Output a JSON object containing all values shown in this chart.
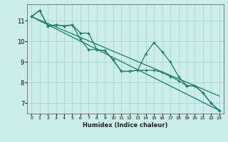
{
  "xlabel": "Humidex (Indice chaleur)",
  "ylabel": "",
  "bg_color": "#cceee8",
  "grid_color": "#aad4cc",
  "line_color": "#1a7a6a",
  "x_data": [
    0,
    1,
    2,
    3,
    4,
    5,
    6,
    7,
    8,
    9,
    10,
    11,
    12,
    13,
    14,
    15,
    16,
    17,
    18,
    19,
    20,
    21,
    22,
    23
  ],
  "line1": [
    11.2,
    11.5,
    10.75,
    10.8,
    10.75,
    10.8,
    10.4,
    10.4,
    9.6,
    9.55,
    9.1,
    8.55,
    8.55,
    8.6,
    9.4,
    9.95,
    9.5,
    9.0,
    8.3,
    7.85,
    7.85,
    7.5,
    7.0,
    6.65
  ],
  "line2": [
    11.2,
    11.5,
    10.75,
    10.8,
    10.75,
    10.8,
    10.1,
    9.6,
    9.6,
    9.55,
    9.1,
    8.55,
    8.55,
    8.6,
    8.6,
    8.6,
    8.5,
    8.3,
    8.1,
    7.85,
    7.85,
    7.5,
    7.0,
    6.65
  ],
  "line3_x": [
    0,
    23
  ],
  "line3_y": [
    11.2,
    6.65
  ],
  "line4_x": [
    0,
    23
  ],
  "line4_y": [
    11.2,
    7.35
  ],
  "ylim": [
    6.5,
    11.8
  ],
  "xlim": [
    -0.5,
    23.5
  ],
  "yticks": [
    7,
    8,
    9,
    10,
    11
  ],
  "xticks": [
    0,
    1,
    2,
    3,
    4,
    5,
    6,
    7,
    8,
    9,
    10,
    11,
    12,
    13,
    14,
    15,
    16,
    17,
    18,
    19,
    20,
    21,
    22,
    23
  ]
}
